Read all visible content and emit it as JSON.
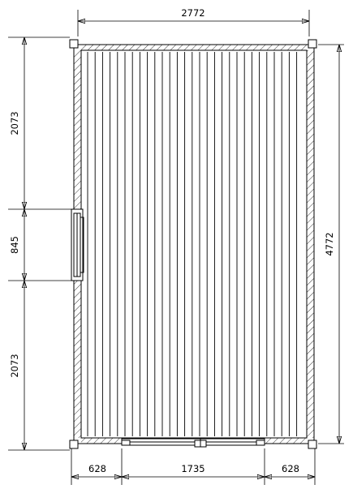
{
  "drawing": {
    "dimensions": {
      "overall_width": "2772",
      "overall_length": "4772",
      "left_top_segment": "2073",
      "left_window_segment": "845",
      "left_bottom_segment": "2073",
      "bottom_left_segment": "628",
      "bottom_door_segment": "1735",
      "bottom_right_segment": "628"
    }
  }
}
